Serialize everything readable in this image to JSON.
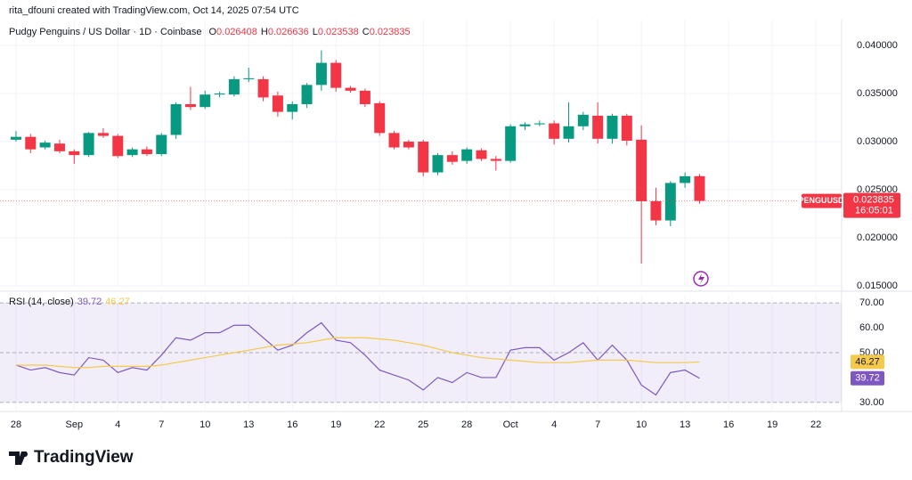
{
  "header": {
    "title": "rita_dfouni created with TradingView.com, Oct 14, 2025 07:54 UTC"
  },
  "chart_data": [
    {
      "type": "candlestick",
      "title": "Pudgy Penguins / US Dollar · 1D · Coinbase",
      "ohlc_prefixes": [
        "O",
        "H",
        "L",
        "C"
      ],
      "open": [
        0.0302,
        0.0305,
        0.0294,
        0.0298,
        0.029,
        0.0286,
        0.0309,
        0.0306,
        0.0286,
        0.0292,
        0.0287,
        0.0307,
        0.0339,
        0.0336,
        0.0349,
        0.0349,
        0.0365,
        0.0365,
        0.0348,
        0.0331,
        0.0339,
        0.0359,
        0.0382,
        0.0356,
        0.0353,
        0.034,
        0.0309,
        0.03,
        0.03,
        0.0268,
        0.0286,
        0.028,
        0.0291,
        0.0282,
        0.028,
        0.0316,
        0.0318,
        0.0319,
        0.0303,
        0.0316,
        0.0327,
        0.0303,
        0.0327,
        0.0302,
        0.0238,
        0.0218,
        0.0257,
        0.026408
      ],
      "high": [
        0.0311,
        0.0308,
        0.0301,
        0.0302,
        0.0292,
        0.031,
        0.0314,
        0.0308,
        0.0294,
        0.0295,
        0.0309,
        0.0341,
        0.0357,
        0.0353,
        0.0352,
        0.0368,
        0.0377,
        0.0368,
        0.0352,
        0.0342,
        0.0361,
        0.0395,
        0.0385,
        0.0358,
        0.0355,
        0.0342,
        0.0311,
        0.0302,
        0.0302,
        0.0288,
        0.029,
        0.0294,
        0.0293,
        0.0285,
        0.0318,
        0.032,
        0.0322,
        0.0322,
        0.0341,
        0.0331,
        0.0341,
        0.0329,
        0.0329,
        0.0317,
        0.0252,
        0.0259,
        0.0268,
        0.026636
      ],
      "low": [
        0.03,
        0.0288,
        0.0292,
        0.0288,
        0.0277,
        0.0284,
        0.0304,
        0.0283,
        0.0284,
        0.0285,
        0.0285,
        0.0303,
        0.0333,
        0.0334,
        0.0346,
        0.0347,
        0.0362,
        0.0342,
        0.0326,
        0.0323,
        0.0335,
        0.0353,
        0.0352,
        0.0351,
        0.0336,
        0.0306,
        0.0292,
        0.0292,
        0.0264,
        0.0265,
        0.0276,
        0.0277,
        0.028,
        0.027,
        0.0278,
        0.0312,
        0.0316,
        0.0297,
        0.0299,
        0.0312,
        0.0298,
        0.0298,
        0.0296,
        0.0173,
        0.0213,
        0.0212,
        0.0252,
        0.023538
      ],
      "close": [
        0.0305,
        0.0292,
        0.0299,
        0.029,
        0.0286,
        0.0309,
        0.0306,
        0.0285,
        0.0292,
        0.0287,
        0.0307,
        0.0339,
        0.0336,
        0.0349,
        0.035,
        0.0365,
        0.0366,
        0.0346,
        0.0331,
        0.0339,
        0.0359,
        0.0382,
        0.0356,
        0.0353,
        0.0339,
        0.0309,
        0.0294,
        0.0294,
        0.0268,
        0.0286,
        0.0279,
        0.0292,
        0.0282,
        0.028,
        0.0316,
        0.0318,
        0.0319,
        0.0303,
        0.0316,
        0.0328,
        0.0303,
        0.0327,
        0.0301,
        0.0238,
        0.0218,
        0.0257,
        0.0264,
        0.023835
      ],
      "up_color": "#089981",
      "down_color": "#f23645",
      "symbol": "PENGUUSD",
      "countdown": "16:05:01",
      "ylim": [
        0.0149,
        0.0427
      ],
      "yticks": [
        {
          "value": 0.015,
          "label": "0.015000"
        },
        {
          "value": 0.02,
          "label": "0.020000"
        },
        {
          "value": 0.025,
          "label": "0.025000"
        },
        {
          "value": 0.03,
          "label": "0.030000"
        },
        {
          "value": 0.035,
          "label": "0.035000"
        },
        {
          "value": 0.04,
          "label": "0.040000"
        }
      ],
      "xlim": [
        -1.1,
        56.77
      ],
      "xticks": [
        {
          "value": 0,
          "label": "28"
        },
        {
          "value": 4,
          "label": "Sep"
        },
        {
          "value": 7,
          "label": "4"
        },
        {
          "value": 10,
          "label": "7"
        },
        {
          "value": 13,
          "label": "10"
        },
        {
          "value": 16,
          "label": "13"
        },
        {
          "value": 19,
          "label": "16"
        },
        {
          "value": 22,
          "label": "19"
        },
        {
          "value": 25,
          "label": "22"
        },
        {
          "value": 28,
          "label": "25"
        },
        {
          "value": 31,
          "label": "28"
        },
        {
          "value": 34,
          "label": "Oct"
        },
        {
          "value": 37,
          "label": "4"
        },
        {
          "value": 40,
          "label": "7"
        },
        {
          "value": 43,
          "label": "10"
        },
        {
          "value": 46,
          "label": "13"
        },
        {
          "value": 49,
          "label": "16"
        },
        {
          "value": 52,
          "label": "19"
        },
        {
          "value": 55,
          "label": "22"
        }
      ],
      "grid": true
    },
    {
      "type": "line",
      "title": "RSI (14, close)",
      "series": [
        {
          "color": "#7e57c2",
          "values": [
            45,
            43,
            44,
            42,
            41,
            48,
            47,
            42,
            44,
            43,
            49,
            56,
            55,
            58,
            58,
            61,
            61,
            56,
            51,
            53,
            58,
            62,
            55,
            54,
            49,
            43,
            41,
            39,
            35,
            40,
            38,
            42,
            40,
            40,
            51,
            52,
            52,
            47,
            50,
            54,
            47,
            53,
            47,
            37,
            33,
            42,
            43,
            39.72
          ]
        },
        {
          "color": "#f5c94c",
          "values": [
            45,
            45,
            45,
            44.5,
            44,
            44,
            44.5,
            44.5,
            44.5,
            44.5,
            45,
            46,
            47,
            48,
            49,
            50,
            51,
            52,
            53,
            53.5,
            54,
            55,
            56,
            56,
            56,
            55.5,
            55,
            54,
            53,
            51.5,
            50,
            49,
            48,
            47.5,
            47,
            46.5,
            46,
            46,
            46,
            46.5,
            47,
            47,
            47,
            46.5,
            46,
            46,
            46,
            46.27
          ]
        }
      ],
      "ylim": [
        27.1,
        72.9
      ],
      "yticks": [
        {
          "value": 30,
          "label": "30.00"
        },
        {
          "value": 50,
          "label": "50.00"
        },
        {
          "value": 60,
          "label": "60.00"
        },
        {
          "value": 70,
          "label": "70.00"
        }
      ],
      "levels": [
        30,
        50,
        70
      ]
    }
  ],
  "footer": {
    "logo": "TradingView"
  }
}
